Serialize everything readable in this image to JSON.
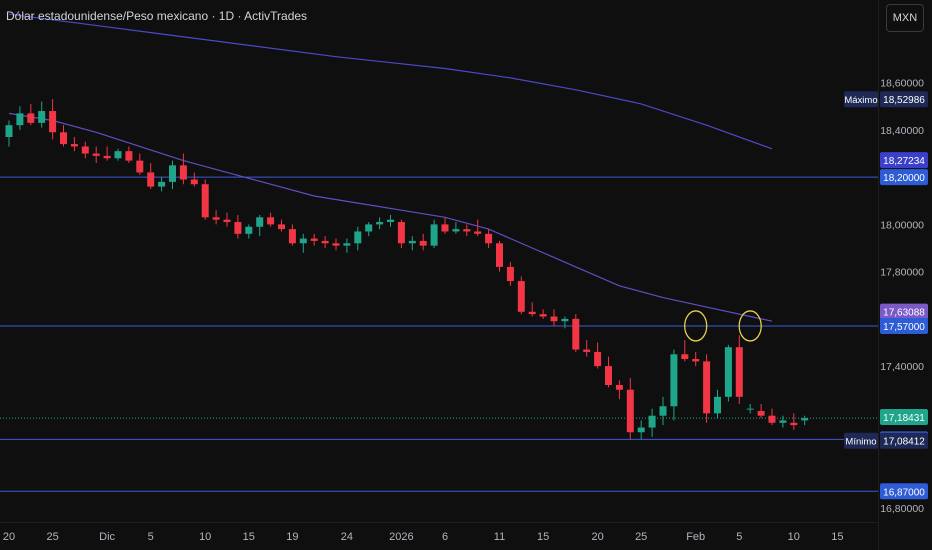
{
  "header": {
    "title": "Dólar estadounidense/Peso mexicano · 1D · ActivTrades",
    "currency_label": "MXN"
  },
  "colors": {
    "background": "#0f0f0f",
    "up": "#1fa58a",
    "down": "#f23645",
    "ma_fast": "#5e4fc4",
    "ma_slow": "#4c49c8",
    "hline": "#3b5bdb",
    "circle": "#e5cf50"
  },
  "chart_data": {
    "type": "candlestick",
    "y_ticks": [
      "18,60000",
      "18,40000",
      "18,00000",
      "17,80000",
      "17,40000",
      "16,80000"
    ],
    "x_ticks": [
      "20",
      "25",
      "Dic",
      "5",
      "10",
      "15",
      "19",
      "24",
      "2026",
      "6",
      "11",
      "15",
      "20",
      "25",
      "Feb",
      "5",
      "10",
      "15"
    ],
    "horizontal_lines": [
      18.2,
      17.57,
      17.09,
      16.87
    ],
    "price_labels": [
      {
        "text": "18,52986",
        "caption": "Máximo",
        "kind": "max"
      },
      {
        "text": "18,27234",
        "caption": "",
        "kind": "ma_slow"
      },
      {
        "text": "18,20000",
        "caption": "",
        "kind": "hline"
      },
      {
        "text": "17,63088",
        "caption": "",
        "kind": "ma_fast"
      },
      {
        "text": "17,57000",
        "caption": "",
        "kind": "hline"
      },
      {
        "text": "17,18431",
        "caption": "",
        "kind": "last"
      },
      {
        "text": "17,09000",
        "caption": "",
        "kind": "hline"
      },
      {
        "text": "17,08412",
        "caption": "Mínimo",
        "kind": "min"
      },
      {
        "text": "16,87000",
        "caption": "",
        "kind": "hline"
      }
    ],
    "candles": [
      [
        18.37,
        18.44,
        18.33,
        18.42
      ],
      [
        18.42,
        18.5,
        18.4,
        18.47
      ],
      [
        18.47,
        18.51,
        18.42,
        18.43
      ],
      [
        18.43,
        18.52,
        18.41,
        18.48
      ],
      [
        18.48,
        18.53,
        18.36,
        18.39
      ],
      [
        18.39,
        18.42,
        18.33,
        18.34
      ],
      [
        18.34,
        18.37,
        18.31,
        18.33
      ],
      [
        18.33,
        18.35,
        18.28,
        18.3
      ],
      [
        18.3,
        18.33,
        18.26,
        18.29
      ],
      [
        18.29,
        18.33,
        18.27,
        18.28
      ],
      [
        18.28,
        18.32,
        18.27,
        18.31
      ],
      [
        18.31,
        18.33,
        18.26,
        18.27
      ],
      [
        18.27,
        18.3,
        18.21,
        18.22
      ],
      [
        18.22,
        18.26,
        18.15,
        18.16
      ],
      [
        18.16,
        18.2,
        18.14,
        18.18
      ],
      [
        18.18,
        18.27,
        18.15,
        18.25
      ],
      [
        18.25,
        18.3,
        18.17,
        18.19
      ],
      [
        18.19,
        18.22,
        18.16,
        18.17
      ],
      [
        18.17,
        18.19,
        18.02,
        18.03
      ],
      [
        18.03,
        18.06,
        18.0,
        18.02
      ],
      [
        18.02,
        18.05,
        17.99,
        18.01
      ],
      [
        18.01,
        18.04,
        17.94,
        17.96
      ],
      [
        17.96,
        18.0,
        17.94,
        17.99
      ],
      [
        17.99,
        18.04,
        17.95,
        18.03
      ],
      [
        18.03,
        18.05,
        17.99,
        18.0
      ],
      [
        18.0,
        18.02,
        17.97,
        17.98
      ],
      [
        17.98,
        18.0,
        17.91,
        17.92
      ],
      [
        17.92,
        17.96,
        17.88,
        17.94
      ],
      [
        17.94,
        17.96,
        17.91,
        17.93
      ],
      [
        17.93,
        17.95,
        17.9,
        17.92
      ],
      [
        17.92,
        17.94,
        17.89,
        17.91
      ],
      [
        17.91,
        17.94,
        17.88,
        17.92
      ],
      [
        17.92,
        17.99,
        17.89,
        17.97
      ],
      [
        17.97,
        18.01,
        17.95,
        18.0
      ],
      [
        18.0,
        18.03,
        17.98,
        18.01
      ],
      [
        18.01,
        18.04,
        17.99,
        18.02
      ],
      [
        18.01,
        18.02,
        17.9,
        17.92
      ],
      [
        17.92,
        17.95,
        17.89,
        17.93
      ],
      [
        17.93,
        17.96,
        17.89,
        17.91
      ],
      [
        17.91,
        18.02,
        17.9,
        18.0
      ],
      [
        18.0,
        18.03,
        17.96,
        17.97
      ],
      [
        17.97,
        18.01,
        17.96,
        17.98
      ],
      [
        17.98,
        18.0,
        17.95,
        17.97
      ],
      [
        17.97,
        18.02,
        17.95,
        17.96
      ],
      [
        17.96,
        17.98,
        17.9,
        17.92
      ],
      [
        17.92,
        17.93,
        17.8,
        17.82
      ],
      [
        17.82,
        17.84,
        17.74,
        17.76
      ],
      [
        17.76,
        17.78,
        17.62,
        17.63
      ],
      [
        17.63,
        17.67,
        17.61,
        17.62
      ],
      [
        17.62,
        17.64,
        17.6,
        17.61
      ],
      [
        17.61,
        17.64,
        17.57,
        17.59
      ],
      [
        17.59,
        17.61,
        17.56,
        17.6
      ],
      [
        17.6,
        17.62,
        17.46,
        17.47
      ],
      [
        17.47,
        17.51,
        17.44,
        17.46
      ],
      [
        17.46,
        17.5,
        17.39,
        17.4
      ],
      [
        17.4,
        17.44,
        17.31,
        17.32
      ],
      [
        17.32,
        17.34,
        17.26,
        17.3
      ],
      [
        17.3,
        17.35,
        17.09,
        17.12
      ],
      [
        17.12,
        17.17,
        17.09,
        17.14
      ],
      [
        17.14,
        17.22,
        17.1,
        17.19
      ],
      [
        17.19,
        17.27,
        17.15,
        17.23
      ],
      [
        17.23,
        17.47,
        17.17,
        17.45
      ],
      [
        17.45,
        17.51,
        17.42,
        17.43
      ],
      [
        17.43,
        17.46,
        17.4,
        17.42
      ],
      [
        17.42,
        17.45,
        17.16,
        17.2
      ],
      [
        17.2,
        17.3,
        17.18,
        17.27
      ],
      [
        17.27,
        17.49,
        17.25,
        17.48
      ],
      [
        17.48,
        17.53,
        17.24,
        17.27
      ],
      [
        17.22,
        17.24,
        17.2,
        17.22
      ],
      [
        17.21,
        17.24,
        17.18,
        17.19
      ],
      [
        17.19,
        17.22,
        17.15,
        17.16
      ],
      [
        17.16,
        17.19,
        17.14,
        17.17
      ],
      [
        17.16,
        17.2,
        17.13,
        17.15
      ],
      [
        17.17,
        17.19,
        17.15,
        17.18
      ]
    ],
    "ma_fast": [
      [
        0,
        18.47
      ],
      [
        4,
        18.44
      ],
      [
        8,
        18.39
      ],
      [
        12,
        18.33
      ],
      [
        16,
        18.27
      ],
      [
        20,
        18.22
      ],
      [
        24,
        18.17
      ],
      [
        28,
        18.12
      ],
      [
        32,
        18.09
      ],
      [
        36,
        18.06
      ],
      [
        40,
        18.03
      ],
      [
        44,
        17.98
      ],
      [
        48,
        17.9
      ],
      [
        52,
        17.82
      ],
      [
        56,
        17.74
      ],
      [
        60,
        17.69
      ],
      [
        64,
        17.65
      ],
      [
        68,
        17.61
      ],
      [
        70,
        17.59
      ]
    ],
    "ma_slow": [
      [
        0,
        18.89
      ],
      [
        10,
        18.83
      ],
      [
        20,
        18.77
      ],
      [
        30,
        18.71
      ],
      [
        40,
        18.66
      ],
      [
        46,
        18.62
      ],
      [
        52,
        18.57
      ],
      [
        58,
        18.51
      ],
      [
        64,
        18.42
      ],
      [
        70,
        18.32
      ]
    ],
    "circles": [
      {
        "index": 63,
        "price": 17.57
      },
      {
        "index": 68,
        "price": 17.57
      }
    ],
    "ylim": [
      16.74,
      18.95
    ]
  }
}
